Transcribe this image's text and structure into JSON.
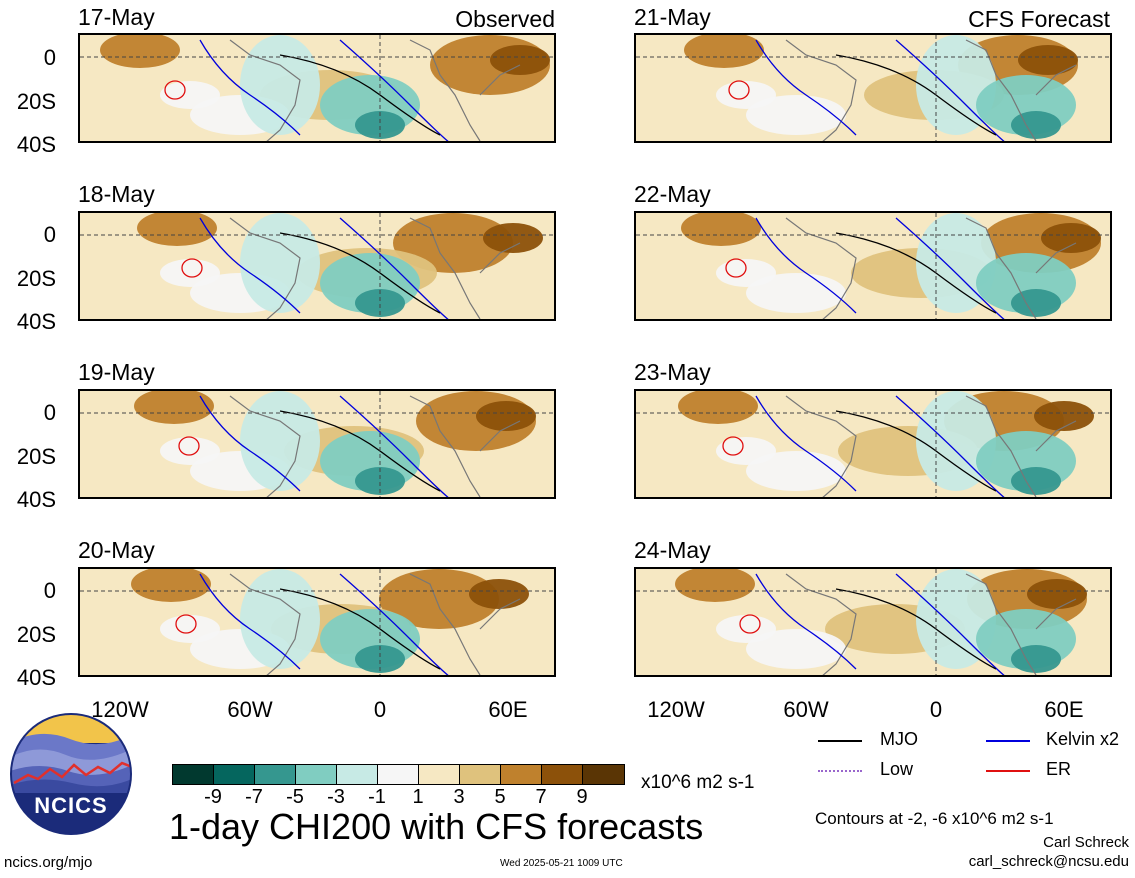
{
  "left_header": "Observed",
  "right_header": "CFS Forecast",
  "panels_left": [
    {
      "date": "17-May"
    },
    {
      "date": "18-May"
    },
    {
      "date": "19-May"
    },
    {
      "date": "20-May"
    }
  ],
  "panels_right": [
    {
      "date": "21-May"
    },
    {
      "date": "22-May"
    },
    {
      "date": "23-May"
    },
    {
      "date": "24-May"
    }
  ],
  "lat_labels": [
    "0",
    "20S",
    "40S"
  ],
  "lon_labels": [
    "120W",
    "60W",
    "0",
    "60E"
  ],
  "legend": {
    "mjo": {
      "label": "MJO",
      "color": "#000000"
    },
    "kelvin": {
      "label": "Kelvin x2",
      "color": "#0000dd"
    },
    "low": {
      "label": "Low",
      "color": "#9966cc"
    },
    "er": {
      "label": "ER",
      "color": "#e01010"
    }
  },
  "colorbar": {
    "colors": [
      "#01392f",
      "#05665e",
      "#35978f",
      "#80cdc1",
      "#c7eae5",
      "#f6f6f6",
      "#f6e8c3",
      "#dfc27d",
      "#bf812d",
      "#8c510a",
      "#5a3505"
    ],
    "tick_labels": [
      "-9",
      "-7",
      "-5",
      "-3",
      "-1",
      "1",
      "3",
      "5",
      "7",
      "9"
    ],
    "units": "x10^6 m2 s-1"
  },
  "main_title": "1-day CHI200 with CFS forecasts",
  "contours_note": "Contours at -2, -6 x10^6 m2 s-1",
  "author": "Carl Schreck",
  "email": "carl_schreck@ncsu.edu",
  "site": "ncics.org/mjo",
  "timestamp": "Wed 2025-05-21 1009 UTC",
  "logo_text": "NCICS"
}
